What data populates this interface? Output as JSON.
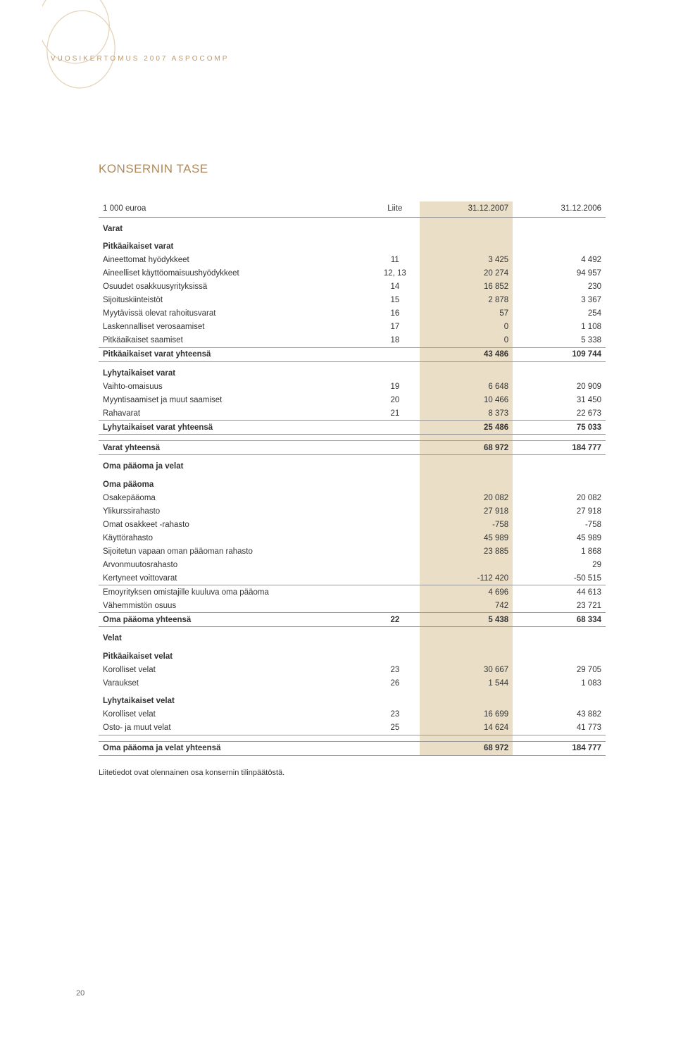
{
  "header": "VUOSIKERTOMUS 2007 ASPOCOMP",
  "title": "KONSERNIN TASE",
  "columns": {
    "label": "1 000 euroa",
    "liite": "Liite",
    "v1": "31.12.2007",
    "v2": "31.12.2006"
  },
  "ornament": {
    "stroke": "#e6d4b8",
    "width": 1.5
  },
  "colors": {
    "text": "#333333",
    "accent": "#b08a5a",
    "header_text": "#c09868",
    "hairline": "#999999",
    "highlight_bg": "#eadfc6",
    "page_bg": "#ffffff"
  },
  "rows": [
    {
      "type": "section",
      "label": "Varat"
    },
    {
      "type": "section",
      "label": "Pitkäaikaiset varat"
    },
    {
      "label": "Aineettomat hyödykkeet",
      "liite": "11",
      "v1": "3 425",
      "v2": "4 492"
    },
    {
      "label": "Aineelliset käyttöomaisuushyödykkeet",
      "liite": "12, 13",
      "v1": "20 274",
      "v2": "94 957"
    },
    {
      "label": "Osuudet osakkuusyrityksissä",
      "liite": "14",
      "v1": "16 852",
      "v2": "230"
    },
    {
      "label": "Sijoituskiinteistöt",
      "liite": "15",
      "v1": "2 878",
      "v2": "3 367"
    },
    {
      "label": "Myytävissä olevat rahoitusvarat",
      "liite": "16",
      "v1": "57",
      "v2": "254"
    },
    {
      "label": "Laskennalliset verosaamiset",
      "liite": "17",
      "v1": "0",
      "v2": "1 108"
    },
    {
      "label": "Pitkäaikaiset saamiset",
      "liite": "18",
      "v1": "0",
      "v2": "5 338",
      "underline": true
    },
    {
      "type": "subtotal",
      "label": "Pitkäaikaiset varat yhteensä",
      "v1": "43 486",
      "v2": "109 744",
      "box": true
    },
    {
      "type": "section",
      "label": "Lyhytaikaiset varat"
    },
    {
      "label": "Vaihto-omaisuus",
      "liite": "19",
      "v1": "6 648",
      "v2": "20 909"
    },
    {
      "label": "Myyntisaamiset ja muut saamiset",
      "liite": "20",
      "v1": "10 466",
      "v2": "31 450"
    },
    {
      "label": "Rahavarat",
      "liite": "21",
      "v1": "8 373",
      "v2": "22 673",
      "underline": true
    },
    {
      "type": "subtotal",
      "label": "Lyhytaikaiset varat yhteensä",
      "v1": "25 486",
      "v2": "75 033",
      "box": true
    },
    {
      "type": "subtotal",
      "label": "Varat yhteensä",
      "v1": "68 972",
      "v2": "184 777",
      "box": true,
      "gap_above": true
    },
    {
      "type": "section",
      "label": "Oma pääoma ja velat"
    },
    {
      "type": "section",
      "label": "Oma pääoma"
    },
    {
      "label": "Osakepääoma",
      "v1": "20 082",
      "v2": "20 082"
    },
    {
      "label": "Ylikurssirahasto",
      "v1": "27 918",
      "v2": "27 918"
    },
    {
      "label": "Omat osakkeet -rahasto",
      "v1": "-758",
      "v2": "-758"
    },
    {
      "label": "Käyttörahasto",
      "v1": "45 989",
      "v2": "45 989"
    },
    {
      "label": "Sijoitetun vapaan oman pääoman rahasto",
      "v1": "23 885",
      "v2": "1 868"
    },
    {
      "label": "Arvonmuutosrahasto",
      "v1": "",
      "v2": "29"
    },
    {
      "label": "Kertyneet voittovarat",
      "v1": "-112 420",
      "v2": "-50 515",
      "underline": true
    },
    {
      "label": "Emoyrityksen omistajille kuuluva oma pääoma",
      "v1": "4 696",
      "v2": "44 613"
    },
    {
      "label": "Vähemmistön osuus",
      "v1": "742",
      "v2": "23 721",
      "underline": true
    },
    {
      "type": "subtotal",
      "label": "Oma pääoma yhteensä",
      "liite": "22",
      "v1": "5 438",
      "v2": "68 334",
      "box": true
    },
    {
      "type": "section",
      "label": "Velat"
    },
    {
      "type": "section",
      "label": "Pitkäaikaiset velat"
    },
    {
      "label": "Korolliset velat",
      "liite": "23",
      "v1": "30 667",
      "v2": "29 705"
    },
    {
      "label": "Varaukset",
      "liite": "26",
      "v1": "1 544",
      "v2": "1 083"
    },
    {
      "type": "section",
      "label": "Lyhytaikaiset velat"
    },
    {
      "label": "Korolliset velat",
      "liite": "23",
      "v1": "16 699",
      "v2": "43 882"
    },
    {
      "label": "Osto- ja muut velat",
      "liite": "25",
      "v1": "14 624",
      "v2": "41 773",
      "underline": true
    },
    {
      "type": "subtotal",
      "label": "Oma pääoma ja velat yhteensä",
      "v1": "68 972",
      "v2": "184 777",
      "box": true,
      "gap_above": true
    }
  ],
  "footnote": "Liitetiedot ovat olennainen osa konsernin tilinpäätöstä.",
  "page_number": "20"
}
